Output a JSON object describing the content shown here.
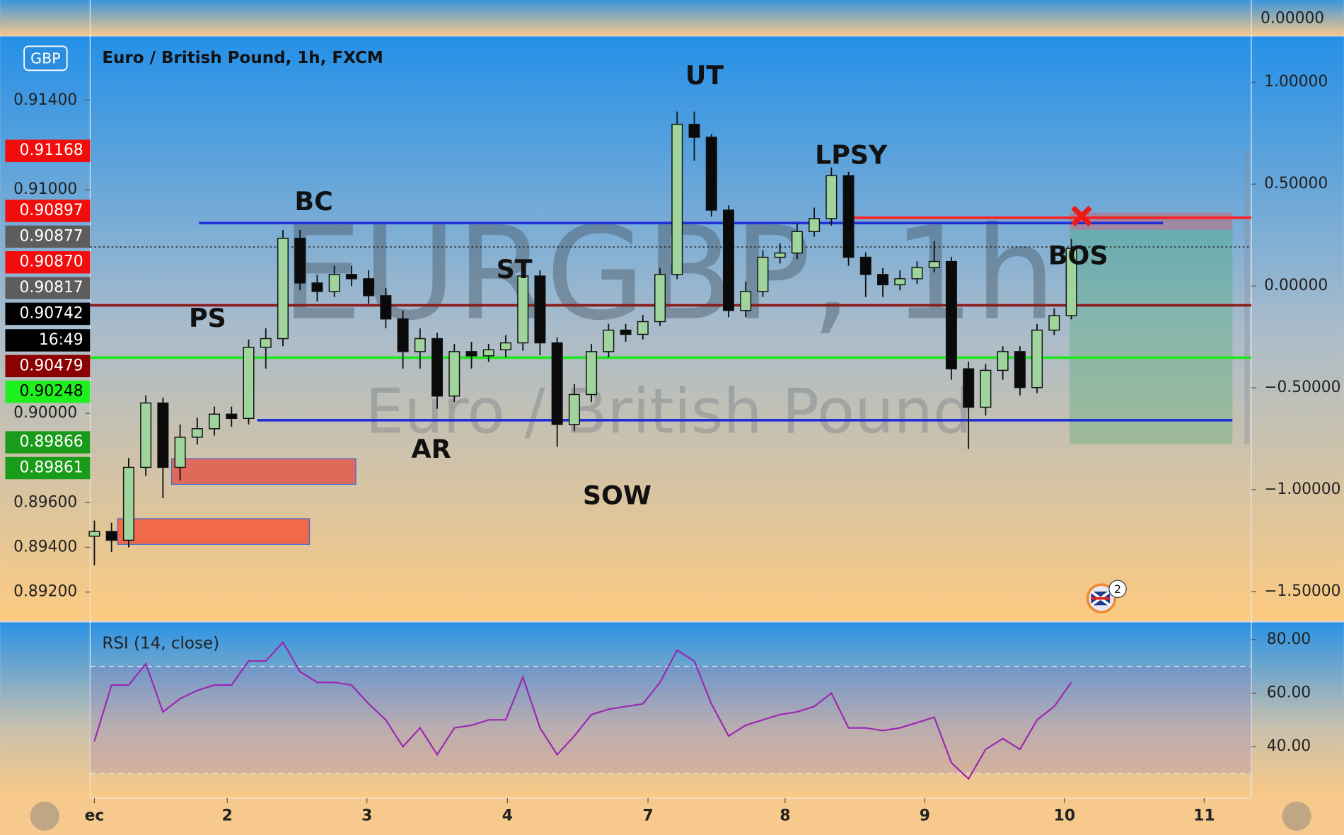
{
  "chart_data": [
    {
      "type": "candlestick",
      "title": "Euro / British Pound, 1h, FXCM",
      "watermark": "EURGBP, 1h",
      "watermark_subtitle": "Euro / British Pound",
      "badge": "GBP",
      "events_badge": "2",
      "top_pane_tick": "0.00000",
      "open": [
        0.8945,
        0.89471,
        0.89432,
        0.89758,
        0.90046,
        0.89758,
        0.89893,
        0.89931,
        0.89996,
        0.89977,
        0.90295,
        0.90334,
        0.90783,
        0.90583,
        0.90545,
        0.90621,
        0.90602,
        0.90526,
        0.90422,
        0.90276,
        0.90334,
        0.90077,
        0.90276,
        0.90257,
        0.90284,
        0.90315,
        0.90614,
        0.90315,
        0.8995,
        0.90084,
        0.90276,
        0.90372,
        0.90353,
        0.9041,
        0.90621,
        0.91293,
        0.91235,
        0.90909,
        0.9046,
        0.90545,
        0.90698,
        0.90717,
        0.90813,
        0.90871,
        0.91063,
        0.90698,
        0.90621,
        0.90575,
        0.90602,
        0.90652,
        0.90679,
        0.90199,
        0.90027,
        0.90192,
        0.90276,
        0.90115,
        0.90372,
        0.90437
      ],
      "high": [
        0.8952,
        0.8951,
        0.898,
        0.9008,
        0.9007,
        0.8995,
        0.8998,
        0.9003,
        0.9003,
        0.9033,
        0.9038,
        0.9082,
        0.9082,
        0.9062,
        0.9066,
        0.9066,
        0.9064,
        0.9056,
        0.9046,
        0.9038,
        0.9036,
        0.9031,
        0.9032,
        0.9031,
        0.9035,
        0.9066,
        0.9064,
        0.9034,
        0.9013,
        0.9031,
        0.904,
        0.904,
        0.9044,
        0.9065,
        0.9135,
        0.9135,
        0.9125,
        0.9093,
        0.9059,
        0.9073,
        0.9076,
        0.9085,
        0.9092,
        0.911,
        0.9108,
        0.9072,
        0.9065,
        0.9064,
        0.9068,
        0.9077,
        0.907,
        0.9023,
        0.9022,
        0.903,
        0.903,
        0.904,
        0.9047,
        0.9078
      ],
      "low": [
        0.8932,
        0.8938,
        0.894,
        0.8972,
        0.8962,
        0.897,
        0.8986,
        0.899,
        0.8994,
        0.8995,
        0.902,
        0.903,
        0.9055,
        0.905,
        0.9052,
        0.9057,
        0.9049,
        0.9038,
        0.902,
        0.902,
        0.9002,
        0.9005,
        0.902,
        0.9023,
        0.9025,
        0.9028,
        0.9026,
        0.8985,
        0.8992,
        0.9005,
        0.9025,
        0.9032,
        0.9033,
        0.9039,
        0.906,
        0.9113,
        0.9088,
        0.9043,
        0.9043,
        0.9052,
        0.9067,
        0.9069,
        0.9079,
        0.9084,
        0.9066,
        0.9052,
        0.9052,
        0.9055,
        0.9058,
        0.9063,
        0.9015,
        0.8984,
        0.8999,
        0.9015,
        0.9008,
        0.9009,
        0.9035,
        0.9042
      ],
      "close": [
        0.89471,
        0.89432,
        0.89758,
        0.90046,
        0.89758,
        0.89893,
        0.89931,
        0.89996,
        0.89977,
        0.90295,
        0.90334,
        0.90783,
        0.90583,
        0.90545,
        0.90621,
        0.90602,
        0.90526,
        0.90422,
        0.90276,
        0.90334,
        0.90077,
        0.90276,
        0.90257,
        0.90284,
        0.90315,
        0.90614,
        0.90315,
        0.8995,
        0.90084,
        0.90276,
        0.90372,
        0.90353,
        0.9041,
        0.90621,
        0.91293,
        0.91235,
        0.90909,
        0.9046,
        0.90545,
        0.90698,
        0.90717,
        0.90813,
        0.90871,
        0.91063,
        0.90698,
        0.90621,
        0.90575,
        0.90602,
        0.90652,
        0.90679,
        0.90199,
        0.90027,
        0.90192,
        0.90276,
        0.90115,
        0.90372,
        0.90437,
        0.90737
      ],
      "up_color": "#9fd49c",
      "down_color": "#0a0a0a",
      "xlim": [
        -0.25,
        67.5
      ],
      "xticks": [
        {
          "value": 0,
          "label": "ec"
        },
        {
          "value": 7.75,
          "label": "2"
        },
        {
          "value": 15.9,
          "label": "3"
        },
        {
          "value": 24.1,
          "label": "4"
        },
        {
          "value": 32.3,
          "label": "7"
        },
        {
          "value": 40.3,
          "label": "8"
        },
        {
          "value": 48.45,
          "label": "9"
        },
        {
          "value": 56.6,
          "label": "10"
        },
        {
          "value": 64.75,
          "label": "11"
        }
      ],
      "ylim": [
        0.89072,
        0.91688
      ],
      "yticks": [
        {
          "value": 0.914,
          "label": "0.91400"
        },
        {
          "value": 0.91,
          "label": "0.91000"
        },
        {
          "value": 0.9,
          "label": "0.90000"
        },
        {
          "value": 0.896,
          "label": "0.89600"
        },
        {
          "value": 0.894,
          "label": "0.89400"
        },
        {
          "value": 0.892,
          "label": "0.89200"
        }
      ],
      "y2lim": [
        -1.643,
        1.227
      ],
      "y2ticks": [
        {
          "value": 1,
          "label": "1.00000"
        },
        {
          "value": 0.5,
          "label": "0.50000"
        },
        {
          "value": 0,
          "label": "0.00000"
        },
        {
          "value": -0.5,
          "label": "−0.50000"
        },
        {
          "value": -1,
          "label": "−1.00000"
        },
        {
          "value": -1.5,
          "label": "−1.50000"
        }
      ],
      "levels": [
        {
          "value": 0.90851,
          "from": 6.1,
          "to": 62.35,
          "color": "#1f2fd6"
        },
        {
          "value": 0.89969,
          "from": 9.5,
          "to": 66.4,
          "color": "#1f2fd6"
        },
        {
          "value": 0.90483,
          "from": -0.25,
          "to": 67.5,
          "color": "#8b1a1a"
        },
        {
          "value": 0.90249,
          "from": -0.25,
          "to": 67.5,
          "color": "#22e622"
        },
        {
          "value": 0.90875,
          "from": 43.75,
          "to": 67.5,
          "color": "#ff2020"
        },
        {
          "value": 0.90744,
          "from": -0.25,
          "to": 67.5,
          "color": "#222222",
          "dashed": true
        }
      ],
      "price_tags": [
        {
          "label": "0.91168",
          "color": "#f20c0c",
          "text_color": "#ffffff"
        },
        {
          "label": "0.90897",
          "color": "#f20c0c",
          "text_color": "#ffffff"
        },
        {
          "label": "0.90877",
          "color": "#5d5d5d",
          "text_color": "#ffffff"
        },
        {
          "label": "0.90870",
          "color": "#f20c0c",
          "text_color": "#ffffff"
        },
        {
          "label": "0.90817",
          "color": "#5d5d5d",
          "text_color": "#ffffff"
        },
        {
          "label": "0.90742",
          "color": "#000000",
          "text_color": "#ffffff"
        },
        {
          "label": "16:49",
          "color": "#000000",
          "text_color": "#ffffff"
        },
        {
          "label": "0.90479",
          "color": "#8b0000",
          "text_color": "#ffffff"
        },
        {
          "label": "0.90248",
          "color": "#1ef01e",
          "text_color": "#000000"
        },
        {
          "label": "0.89866",
          "color": "#1a9b1a",
          "text_color": "#ffffff"
        },
        {
          "label": "0.89861",
          "color": "#1a9b1a",
          "text_color": "#ffffff"
        }
      ],
      "annotations": [
        "PS",
        "BC",
        "AR",
        "ST",
        "SOW",
        "UT",
        "LPSY",
        "BOS"
      ]
    },
    {
      "type": "line",
      "title": "RSI (14, close)",
      "color": "#9c27b0",
      "values": [
        42,
        63,
        63,
        71,
        53,
        58,
        61,
        63,
        63,
        72,
        72,
        79,
        68,
        64,
        64,
        63,
        56,
        50,
        40,
        47,
        37,
        47,
        48,
        50,
        50,
        66,
        47,
        37,
        44,
        52,
        54,
        55,
        56,
        64,
        76,
        72,
        56,
        44,
        48,
        50,
        52,
        53,
        55,
        60,
        47,
        47,
        46,
        47,
        49,
        51,
        34,
        28,
        39,
        43,
        39,
        50,
        55,
        64
      ],
      "xlim": [
        -0.25,
        67.5
      ],
      "ylim": [
        21.1,
        86.1
      ],
      "yticks": [
        {
          "value": 80,
          "label": "80.00"
        },
        {
          "value": 60,
          "label": "60.00"
        },
        {
          "value": 40,
          "label": "40.00"
        }
      ],
      "levels": [
        70,
        30
      ]
    }
  ]
}
